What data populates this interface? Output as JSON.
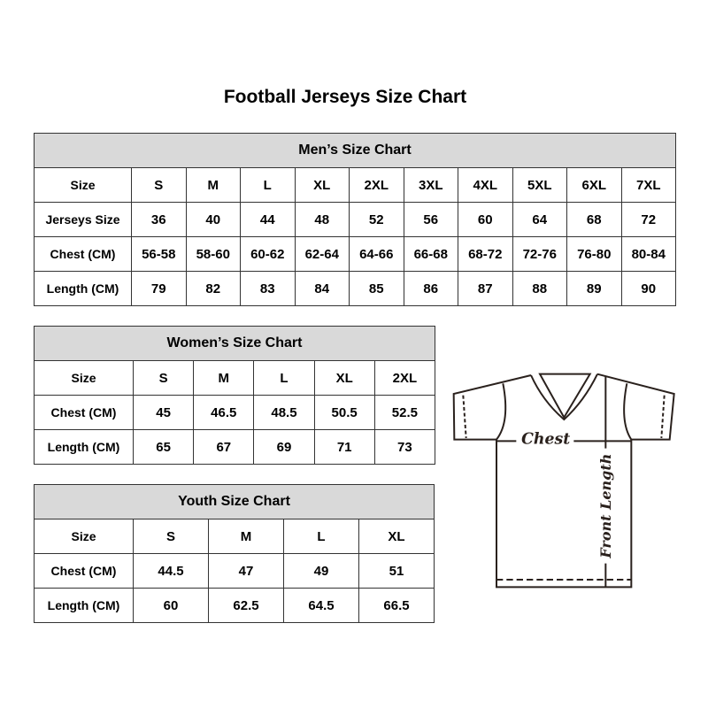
{
  "title": "Football Jerseys Size Chart",
  "men": {
    "title": "Men’s Size Chart",
    "rows": [
      {
        "label": "Size",
        "values": [
          "S",
          "M",
          "L",
          "XL",
          "2XL",
          "3XL",
          "4XL",
          "5XL",
          "6XL",
          "7XL"
        ]
      },
      {
        "label": "Jerseys Size",
        "values": [
          "36",
          "40",
          "44",
          "48",
          "52",
          "56",
          "60",
          "64",
          "68",
          "72"
        ]
      },
      {
        "label": "Chest (CM)",
        "values": [
          "56-58",
          "58-60",
          "60-62",
          "62-64",
          "64-66",
          "66-68",
          "68-72",
          "72-76",
          "76-80",
          "80-84"
        ]
      },
      {
        "label": "Length (CM)",
        "values": [
          "79",
          "82",
          "83",
          "84",
          "85",
          "86",
          "87",
          "88",
          "89",
          "90"
        ]
      }
    ]
  },
  "women": {
    "title": "Women’s Size Chart",
    "rows": [
      {
        "label": "Size",
        "values": [
          "S",
          "M",
          "L",
          "XL",
          "2XL"
        ]
      },
      {
        "label": "Chest (CM)",
        "values": [
          "45",
          "46.5",
          "48.5",
          "50.5",
          "52.5"
        ]
      },
      {
        "label": "Length (CM)",
        "values": [
          "65",
          "67",
          "69",
          "71",
          "73"
        ]
      }
    ]
  },
  "youth": {
    "title": "Youth Size Chart",
    "rows": [
      {
        "label": "Size",
        "values": [
          "S",
          "M",
          "L",
          "XL"
        ]
      },
      {
        "label": "Chest (CM)",
        "values": [
          "44.5",
          "47",
          "49",
          "51"
        ]
      },
      {
        "label": "Length (CM)",
        "values": [
          "60",
          "62.5",
          "64.5",
          "66.5"
        ]
      }
    ]
  },
  "diagram": {
    "chest_label": "Chest",
    "length_label": "Front Length"
  }
}
